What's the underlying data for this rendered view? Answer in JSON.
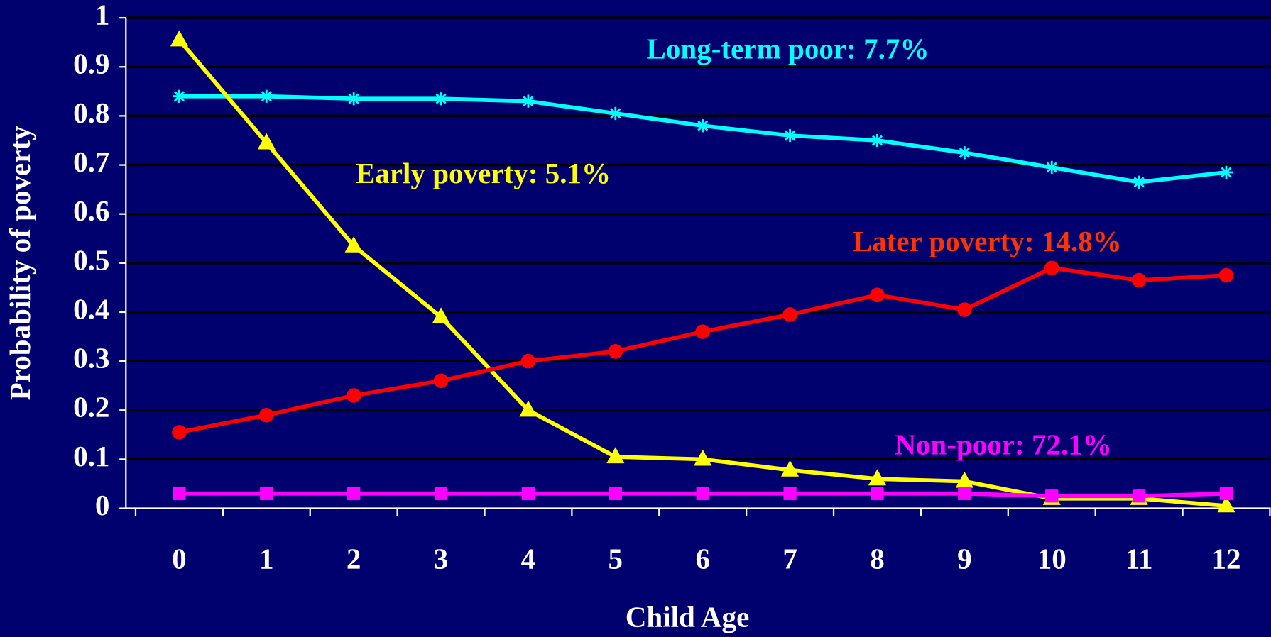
{
  "chart_data": {
    "type": "line",
    "xlabel": "Child Age",
    "ylabel": "Probability of poverty",
    "categories": [
      "0",
      "1",
      "2",
      "3",
      "4",
      "5",
      "6",
      "7",
      "8",
      "9",
      "10",
      "11",
      "12"
    ],
    "ylim": [
      0,
      1
    ],
    "yticks": [
      0,
      0.1,
      0.2,
      0.3,
      0.4,
      0.5,
      0.6,
      0.7,
      0.8,
      0.9,
      1
    ],
    "grid": true,
    "series": [
      {
        "name": "Long-term poor: 7.7%",
        "color": "#00ffff",
        "marker": "asterisk",
        "values": [
          0.84,
          0.84,
          0.835,
          0.835,
          0.83,
          0.805,
          0.78,
          0.76,
          0.75,
          0.725,
          0.695,
          0.665,
          0.685
        ]
      },
      {
        "name": "Early poverty: 5.1%",
        "color": "#ffff00",
        "marker": "triangle",
        "values": [
          0.955,
          0.745,
          0.535,
          0.39,
          0.2,
          0.105,
          0.1,
          0.078,
          0.06,
          0.055,
          0.02,
          0.02,
          0.005
        ]
      },
      {
        "name": "Later poverty: 14.8%",
        "color": "#ff0000",
        "label_color": "#ff3300",
        "marker": "circle",
        "values": [
          0.155,
          0.19,
          0.23,
          0.26,
          0.3,
          0.32,
          0.36,
          0.395,
          0.435,
          0.405,
          0.49,
          0.465,
          0.475
        ]
      },
      {
        "name": "Non-poor: 72.1%",
        "color": "#ff00ff",
        "marker": "square",
        "values": [
          0.03,
          0.03,
          0.03,
          0.03,
          0.03,
          0.03,
          0.03,
          0.03,
          0.03,
          0.03,
          0.025,
          0.025,
          0.03
        ]
      }
    ]
  }
}
